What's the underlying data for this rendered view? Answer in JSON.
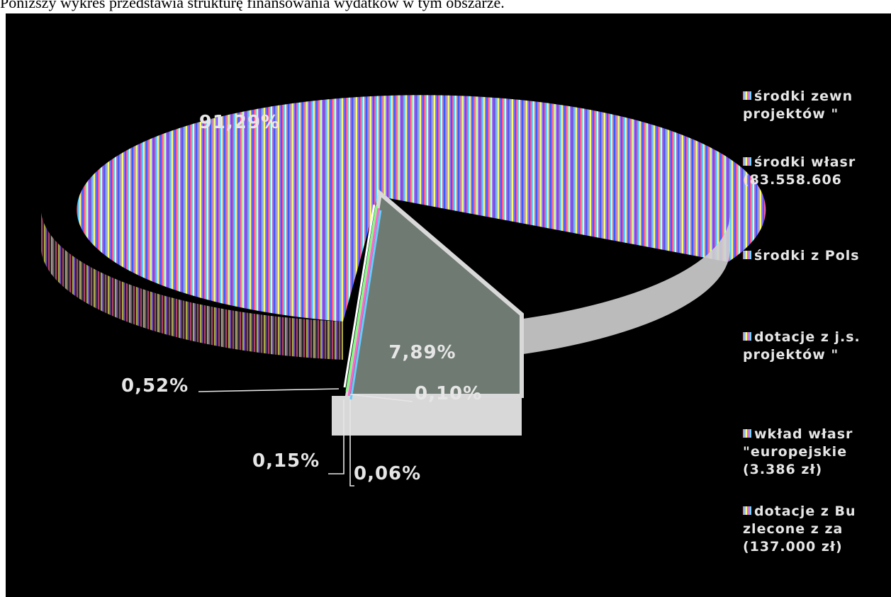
{
  "caption": "Poniższy wykres przedstawia strukturę finansowania wydatków w tym obszarze.",
  "chart_data": {
    "type": "pie",
    "style": "3d-exploded",
    "slices": [
      {
        "label": "91,29%",
        "value": 91.29
      },
      {
        "label": "7,89%",
        "value": 7.89
      },
      {
        "label": "0,10%",
        "value": 0.1
      },
      {
        "label": "0,06%",
        "value": 0.06
      },
      {
        "label": "0,15%",
        "value": 0.15
      },
      {
        "label": "0,52%",
        "value": 0.52
      }
    ],
    "legend": [
      {
        "lines": [
          "środki zewn",
          "projektów \""
        ]
      },
      {
        "lines": [
          "środki własr",
          "(83.558.606"
        ]
      },
      {
        "lines": [
          "środki z Pols"
        ]
      },
      {
        "lines": [
          "dotacje z j.s.",
          "projektów \""
        ]
      },
      {
        "lines": [
          "wkład własr",
          "\"europejskie",
          "(3.386 zł)"
        ]
      },
      {
        "lines": [
          "dotacje z Bu",
          "zlecone z za",
          "(137.000 zł)"
        ]
      }
    ],
    "legend_position": "right",
    "colors": {
      "background": "#000000",
      "label": "#e6e6e6",
      "small_slice": "#6e7a72",
      "rim": "#d9d9d9"
    }
  }
}
